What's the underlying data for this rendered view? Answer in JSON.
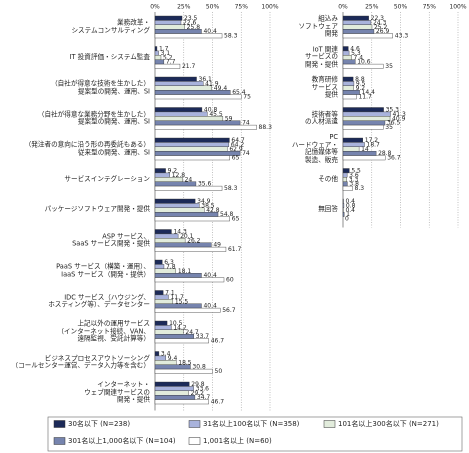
{
  "chart_data": [
    {
      "type": "hbar",
      "categories": [
        "業務改革・\nシステムコンサルティング",
        "IT 投資評価・システム監査",
        "（自社が得意な技術を生かした）\n提案型の開発、運用、SI",
        "（自社が得意な業務分野を生かした）\n提案型の開発、運用、SI",
        "（発注者の意向に沿う形の再委託もある）\n従来型の開発、運用、SI",
        "サービスインテグレーション",
        "パッケージソフトウェア開発・提供",
        "ASP サービス、\nSaaS サービス開発・提供",
        "PaaS サービス（構築・運用）、\nIaaS サービス（開発・提供）",
        "IDC サービス（ハウジング、\nホスティング等）、データセンター",
        "上記以外の運用サービス\n（インターネット接続、VAN、\n遠隔監視、受託計算等）",
        "ビジネスプロセスアウトソーシング\n（コールセンター運営、データ入力等を含む）",
        "インターネット・\nウェブ関連サービスの\n開発・提供"
      ],
      "series": [
        {
          "name": "30名以下 (N=238)",
          "color": "#1c2a58",
          "values": [
            23.5,
            1.7,
            36.1,
            40.8,
            64.7,
            9.2,
            34.9,
            14.3,
            6.3,
            7.1,
            10.5,
            3.4,
            29.8
          ]
        },
        {
          "name": "31名以上100名以下 (N=358)",
          "color": "#a9b3dc",
          "values": [
            22.6,
            3.1,
            41.9,
            45.5,
            64.2,
            12.8,
            38.5,
            20.1,
            7.8,
            11.7,
            14.2,
            9.4,
            33.6
          ]
        },
        {
          "name": "101名以上300名以下 (N=271)",
          "color": "#e2ecdc",
          "values": [
            25.8,
            5.2,
            49.4,
            59.0,
            62.9,
            24.0,
            42.8,
            26.2,
            18.1,
            15.5,
            24.7,
            18.5,
            29.2
          ]
        },
        {
          "name": "301名以上1,000名以下 (N=104)",
          "color": "#7684ae",
          "values": [
            40.4,
            7.7,
            65.4,
            74.0,
            74.0,
            35.6,
            54.8,
            49.0,
            40.4,
            40.4,
            33.7,
            30.8,
            34.7
          ]
        },
        {
          "name": "1,001名以上 (N=60)",
          "color": "#ffffff",
          "values": [
            58.3,
            21.7,
            75.0,
            88.3,
            65.0,
            58.3,
            65.0,
            61.7,
            60.0,
            56.7,
            46.7,
            50.0,
            46.7
          ]
        }
      ],
      "xlim": [
        0,
        100
      ],
      "xticks": [
        {
          "value": 0,
          "label": "0%"
        },
        {
          "value": 25,
          "label": "25%"
        },
        {
          "value": 50,
          "label": "50%"
        },
        {
          "value": 75,
          "label": "75%"
        },
        {
          "value": 100,
          "label": "100%"
        }
      ]
    },
    {
      "type": "hbar",
      "categories": [
        "組込み\nソフトウェア\n開発",
        "IoT 関連\nサービスの\n開発・提供",
        "教育研修\nサービス\n提供",
        "技術者等\nの人材派遣",
        "PC\nハードウェア・\n記憶媒体等\n製造、販売",
        "その他",
        "無回答"
      ],
      "series": [
        {
          "values": [
            22.3,
            4.6,
            8.8,
            35.3,
            17.2,
            5.5,
            0.4
          ]
        },
        {
          "values": [
            24.3,
            5.3,
            9.5,
            41.3,
            18.7,
            3.6,
            0.8
          ]
        },
        {
          "values": [
            25.2,
            7.4,
            9.2,
            40.9,
            14.0,
            3.3,
            0.4
          ]
        },
        {
          "values": [
            26.9,
            10.6,
            14.4,
            36.5,
            28.8,
            3.8,
            1.0
          ]
        },
        {
          "values": [
            43.3,
            35.0,
            11.7,
            35.0,
            36.7,
            8.3,
            0.0
          ]
        }
      ],
      "xlim": [
        0,
        100
      ],
      "xticks": [
        {
          "value": 0,
          "label": "0%"
        },
        {
          "value": 25,
          "label": "25%"
        },
        {
          "value": 50,
          "label": "50%"
        },
        {
          "value": 75,
          "label": "75%"
        },
        {
          "value": 100,
          "label": "100%"
        }
      ]
    }
  ]
}
